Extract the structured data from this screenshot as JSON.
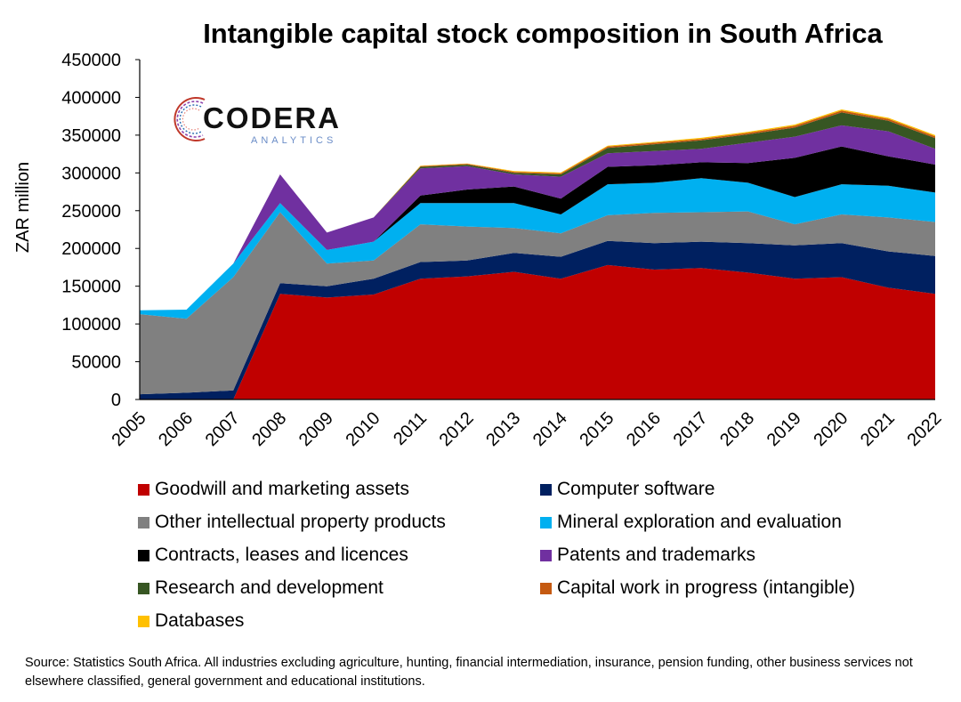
{
  "chart_data": {
    "type": "area",
    "stacked": true,
    "title": "Intangible capital stock composition in South Africa",
    "ylabel": "ZAR million",
    "xlabel": "",
    "ylim": [
      0,
      450000
    ],
    "yticks": [
      0,
      50000,
      100000,
      150000,
      200000,
      250000,
      300000,
      350000,
      400000,
      450000
    ],
    "ytick_labels": [
      "0",
      "50000",
      "100000",
      "150000",
      "200000",
      "250000",
      "300000",
      "350000",
      "400000",
      "450000"
    ],
    "categories": [
      "2005",
      "2006",
      "2007",
      "2008",
      "2009",
      "2010",
      "2011",
      "2012",
      "2013",
      "2014",
      "2015",
      "2016",
      "2017",
      "2018",
      "2019",
      "2020",
      "2021",
      "2022"
    ],
    "legend_position": "bottom",
    "grid": false,
    "series": [
      {
        "name": "Goodwill and marketing assets",
        "color": "#c00000",
        "values": [
          0,
          0,
          0,
          140000,
          135000,
          139000,
          160000,
          163000,
          169000,
          160000,
          178000,
          172000,
          174000,
          168000,
          160000,
          162000,
          148000,
          140000
        ]
      },
      {
        "name": "Computer software",
        "color": "#002060",
        "values": [
          7000,
          9000,
          12000,
          14000,
          15000,
          21000,
          22000,
          21000,
          25000,
          29000,
          32000,
          35000,
          35000,
          39000,
          44000,
          45000,
          48000,
          50000
        ]
      },
      {
        "name": "Other intellectual property products",
        "color": "#808080",
        "values": [
          106000,
          98000,
          150000,
          94000,
          30000,
          24000,
          50000,
          45000,
          33000,
          31000,
          34000,
          40000,
          39000,
          42000,
          28000,
          38000,
          45000,
          45000
        ]
      },
      {
        "name": "Mineral exploration and evaluation",
        "color": "#00b0f0",
        "values": [
          5000,
          12000,
          18000,
          12000,
          18000,
          25000,
          28000,
          31000,
          33000,
          25000,
          41000,
          40000,
          45000,
          38000,
          36000,
          40000,
          42000,
          39000
        ]
      },
      {
        "name": "Contracts, leases and licences",
        "color": "#000000",
        "values": [
          0,
          0,
          0,
          0,
          0,
          0,
          10000,
          18000,
          22000,
          21000,
          23000,
          23000,
          21000,
          26000,
          52000,
          50000,
          39000,
          37000
        ]
      },
      {
        "name": "Patents and trademarks",
        "color": "#7030a0",
        "values": [
          0,
          0,
          0,
          38000,
          23000,
          32000,
          36000,
          31000,
          16000,
          29000,
          18000,
          19000,
          18000,
          27000,
          28000,
          28000,
          33000,
          21000
        ]
      },
      {
        "name": "Research and development",
        "color": "#375623",
        "values": [
          0,
          0,
          0,
          0,
          0,
          0,
          2000,
          2000,
          2000,
          3000,
          7000,
          9000,
          11000,
          11000,
          12000,
          17000,
          14000,
          14000
        ]
      },
      {
        "name": "Capital work in progress (intangible)",
        "color": "#c55a11",
        "values": [
          0,
          0,
          0,
          0,
          0,
          0,
          1000,
          1000,
          1500,
          1500,
          2000,
          2000,
          2000,
          2000,
          2500,
          2500,
          2500,
          2500
        ]
      },
      {
        "name": "Databases",
        "color": "#ffc000",
        "values": [
          0,
          0,
          0,
          0,
          0,
          0,
          500,
          500,
          1000,
          1000,
          1000,
          1000,
          1500,
          1500,
          1500,
          1500,
          1500,
          1500
        ]
      }
    ]
  },
  "logo": {
    "word": "CODERA",
    "sub": "ANALYTICS"
  },
  "source": "Source: Statistics South Africa. All industries excluding agriculture, hunting, financial intermediation, insurance, pension funding, other business services not elsewhere classified, general government and educational institutions."
}
